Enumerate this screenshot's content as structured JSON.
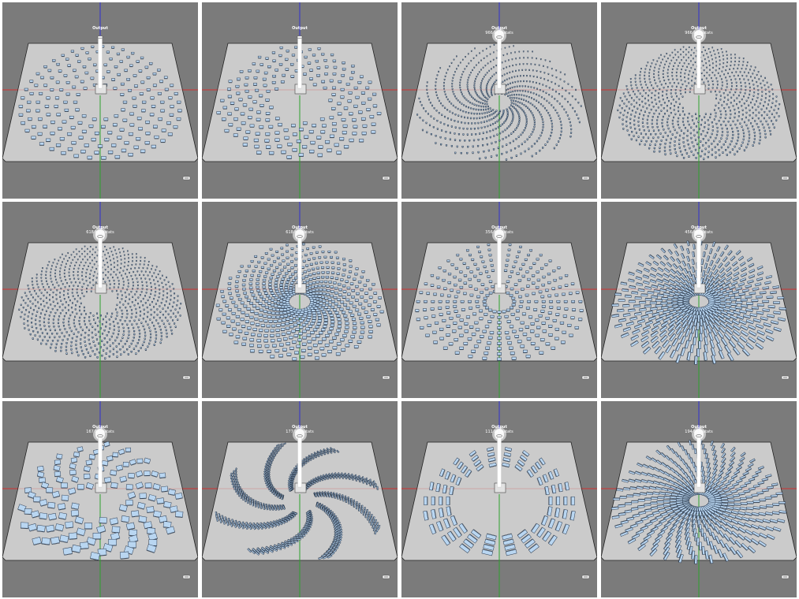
{
  "colors": {
    "viewport_bg": "#7b7b7b",
    "ground": "#cbcbcb",
    "ground_edge": "#222222",
    "axis_x": "#d23232",
    "axis_y": "#2da02d",
    "axis_z": "#3232d2",
    "mirror": "#b9d6f1",
    "mirror_edge": "#2a3b52",
    "tower": "#ffffff"
  },
  "panels": [
    {
      "title": "Output",
      "subtitle": "",
      "layout": "radial-stagger",
      "mirror_shape": "box",
      "tower_glow": false
    },
    {
      "title": "Output",
      "subtitle": "",
      "layout": "phyllotaxis-sparse",
      "mirror_shape": "box",
      "tower_glow": false
    },
    {
      "title": "Output",
      "subtitle": "966 heliostats",
      "layout": "spiral-arms",
      "mirror_shape": "small",
      "tower_glow": true
    },
    {
      "title": "Output",
      "subtitle": "966 heliostats",
      "layout": "fermat-dense",
      "mirror_shape": "small",
      "tower_glow": true
    },
    {
      "title": "Output",
      "subtitle": "618 heliostats",
      "layout": "fermat-dense",
      "mirror_shape": "small",
      "tower_glow": true
    },
    {
      "title": "Output",
      "subtitle": "618 heliostats",
      "layout": "spiral-arms-medium",
      "mirror_shape": "box",
      "tower_glow": true
    },
    {
      "title": "Output",
      "subtitle": "356 heliostats",
      "layout": "radial-rays",
      "mirror_shape": "box",
      "tower_glow": true
    },
    {
      "title": "Output",
      "subtitle": "456 heliostats",
      "layout": "spiral-long",
      "mirror_shape": "long",
      "tower_glow": true
    },
    {
      "title": "Output",
      "subtitle": "167 heliostats",
      "layout": "scatter-large",
      "mirror_shape": "large",
      "tower_glow": true
    },
    {
      "title": "Output",
      "subtitle": "177 heliostats",
      "layout": "pinwheel",
      "mirror_shape": "strip",
      "tower_glow": true
    },
    {
      "title": "Output",
      "subtitle": "111 heliostats",
      "layout": "ring-blocks",
      "mirror_shape": "block",
      "tower_glow": true
    },
    {
      "title": "Output",
      "subtitle": "194 heliostats",
      "layout": "spiral-long-dense",
      "mirror_shape": "long",
      "tower_glow": true
    }
  ]
}
